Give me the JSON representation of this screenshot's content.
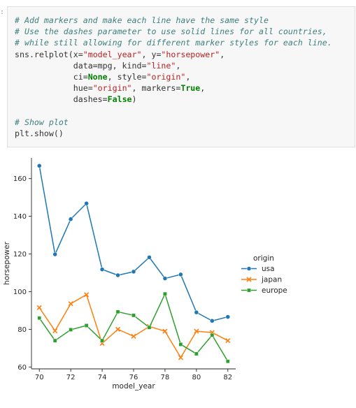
{
  "cell": {
    "lines": [
      [
        {
          "t": "# Add markers and make each line have the same style",
          "c": "cm"
        }
      ],
      [
        {
          "t": "# Use the dashes parameter to use solid lines for all countries,",
          "c": "cm"
        }
      ],
      [
        {
          "t": "# while still allowing for different marker styles for each line.",
          "c": "cm"
        }
      ],
      [
        {
          "t": "sns.relplot(x=",
          "c": ""
        },
        {
          "t": "\"model_year\"",
          "c": "st"
        },
        {
          "t": ", y=",
          "c": ""
        },
        {
          "t": "\"horsepower\"",
          "c": "st"
        },
        {
          "t": ",",
          "c": ""
        }
      ],
      [
        {
          "t": "            data=mpg, kind=",
          "c": ""
        },
        {
          "t": "\"line\"",
          "c": "st"
        },
        {
          "t": ",",
          "c": ""
        }
      ],
      [
        {
          "t": "            ci=",
          "c": ""
        },
        {
          "t": "None",
          "c": "kw"
        },
        {
          "t": ", style=",
          "c": ""
        },
        {
          "t": "\"origin\"",
          "c": "st"
        },
        {
          "t": ",",
          "c": ""
        }
      ],
      [
        {
          "t": "            hue=",
          "c": ""
        },
        {
          "t": "\"origin\"",
          "c": "st"
        },
        {
          "t": ", markers=",
          "c": ""
        },
        {
          "t": "True",
          "c": "kw"
        },
        {
          "t": ",",
          "c": ""
        }
      ],
      [
        {
          "t": "            dashes=",
          "c": ""
        },
        {
          "t": "False",
          "c": "kw"
        },
        {
          "t": ")",
          "c": ""
        }
      ],
      [
        {
          "t": "",
          "c": ""
        }
      ],
      [
        {
          "t": "# Show plot",
          "c": "cm"
        }
      ],
      [
        {
          "t": "plt.show()",
          "c": ""
        }
      ]
    ]
  },
  "chart_data": {
    "type": "line",
    "xlabel": "model_year",
    "ylabel": "horsepower",
    "xlim": [
      69.5,
      82.5
    ],
    "ylim": [
      59,
      171
    ],
    "xticks": [
      70,
      72,
      74,
      76,
      78,
      80,
      82
    ],
    "yticks": [
      60,
      80,
      100,
      120,
      140,
      160
    ],
    "x": [
      70,
      71,
      72,
      73,
      74,
      75,
      76,
      77,
      78,
      79,
      80,
      81,
      82
    ],
    "grid": false,
    "legend": {
      "title": "origin",
      "position": "right"
    },
    "series": [
      {
        "name": "usa",
        "color": "#1f77b4",
        "marker": "circle",
        "values": [
          166.8,
          119.8,
          138.5,
          146.8,
          111.8,
          108.7,
          110.6,
          118.2,
          107.0,
          109.1,
          89.0,
          84.5,
          86.6
        ]
      },
      {
        "name": "japan",
        "color": "#ff7f0e",
        "marker": "x",
        "values": [
          91.5,
          79.2,
          93.6,
          98.4,
          72.5,
          80.0,
          76.3,
          81.5,
          79.0,
          65.0,
          79.0,
          78.3,
          74.0
        ]
      },
      {
        "name": "europe",
        "color": "#2ca02c",
        "marker": "square",
        "values": [
          86.0,
          74.0,
          79.8,
          82.0,
          74.0,
          89.3,
          87.4,
          81.0,
          98.8,
          72.0,
          67.0,
          76.9,
          63.0
        ]
      }
    ]
  }
}
